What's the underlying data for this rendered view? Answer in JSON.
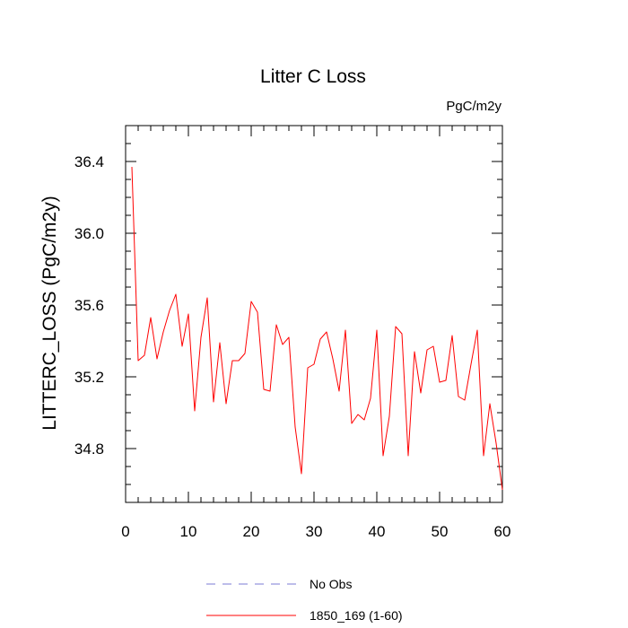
{
  "chart_data": {
    "type": "line",
    "title": "Litter C Loss",
    "units_label": "PgC/m2y",
    "ylabel": "LITTERC_LOSS  (PgC/m2y)",
    "xlabel": "",
    "xlim": [
      0,
      60
    ],
    "ylim": [
      34.5,
      36.6
    ],
    "x_ticks": [
      0,
      10,
      20,
      30,
      40,
      50,
      60
    ],
    "y_ticks": [
      34.8,
      35.2,
      35.6,
      36.0,
      36.4
    ],
    "x_tick_labels": [
      "0",
      "10",
      "20",
      "30",
      "40",
      "50",
      "60"
    ],
    "y_tick_labels": [
      "34.8",
      "35.2",
      "35.6",
      "36.0",
      "36.4"
    ],
    "legend": [
      {
        "label": "No Obs",
        "color": "#7b7bd6",
        "style": "dashed"
      },
      {
        "label": "1850_169 (1-60)",
        "color": "#ff0000",
        "style": "solid"
      }
    ],
    "series": [
      {
        "name": "1850_169 (1-60)",
        "color": "#ff0000",
        "x": [
          1,
          2,
          3,
          4,
          5,
          6,
          7,
          8,
          9,
          10,
          11,
          12,
          13,
          14,
          15,
          16,
          17,
          18,
          19,
          20,
          21,
          22,
          23,
          24,
          25,
          26,
          27,
          28,
          29,
          30,
          31,
          32,
          33,
          34,
          35,
          36,
          37,
          38,
          39,
          40,
          41,
          42,
          43,
          44,
          45,
          46,
          47,
          48,
          49,
          50,
          51,
          52,
          53,
          54,
          55,
          56,
          57,
          58,
          59,
          60
        ],
        "values": [
          36.37,
          35.29,
          35.32,
          35.53,
          35.3,
          35.45,
          35.57,
          35.66,
          35.37,
          35.55,
          35.01,
          35.42,
          35.64,
          35.06,
          35.39,
          35.05,
          35.29,
          35.29,
          35.33,
          35.62,
          35.56,
          35.13,
          35.12,
          35.49,
          35.38,
          35.42,
          34.92,
          34.66,
          35.25,
          35.27,
          35.41,
          35.45,
          35.3,
          35.12,
          35.46,
          34.94,
          34.99,
          34.96,
          35.08,
          35.46,
          34.76,
          34.98,
          35.48,
          35.44,
          34.76,
          35.34,
          35.11,
          35.35,
          35.37,
          35.17,
          35.18,
          35.43,
          35.09,
          35.07,
          35.27,
          35.46,
          34.76,
          35.05,
          34.83,
          34.57
        ]
      }
    ]
  }
}
